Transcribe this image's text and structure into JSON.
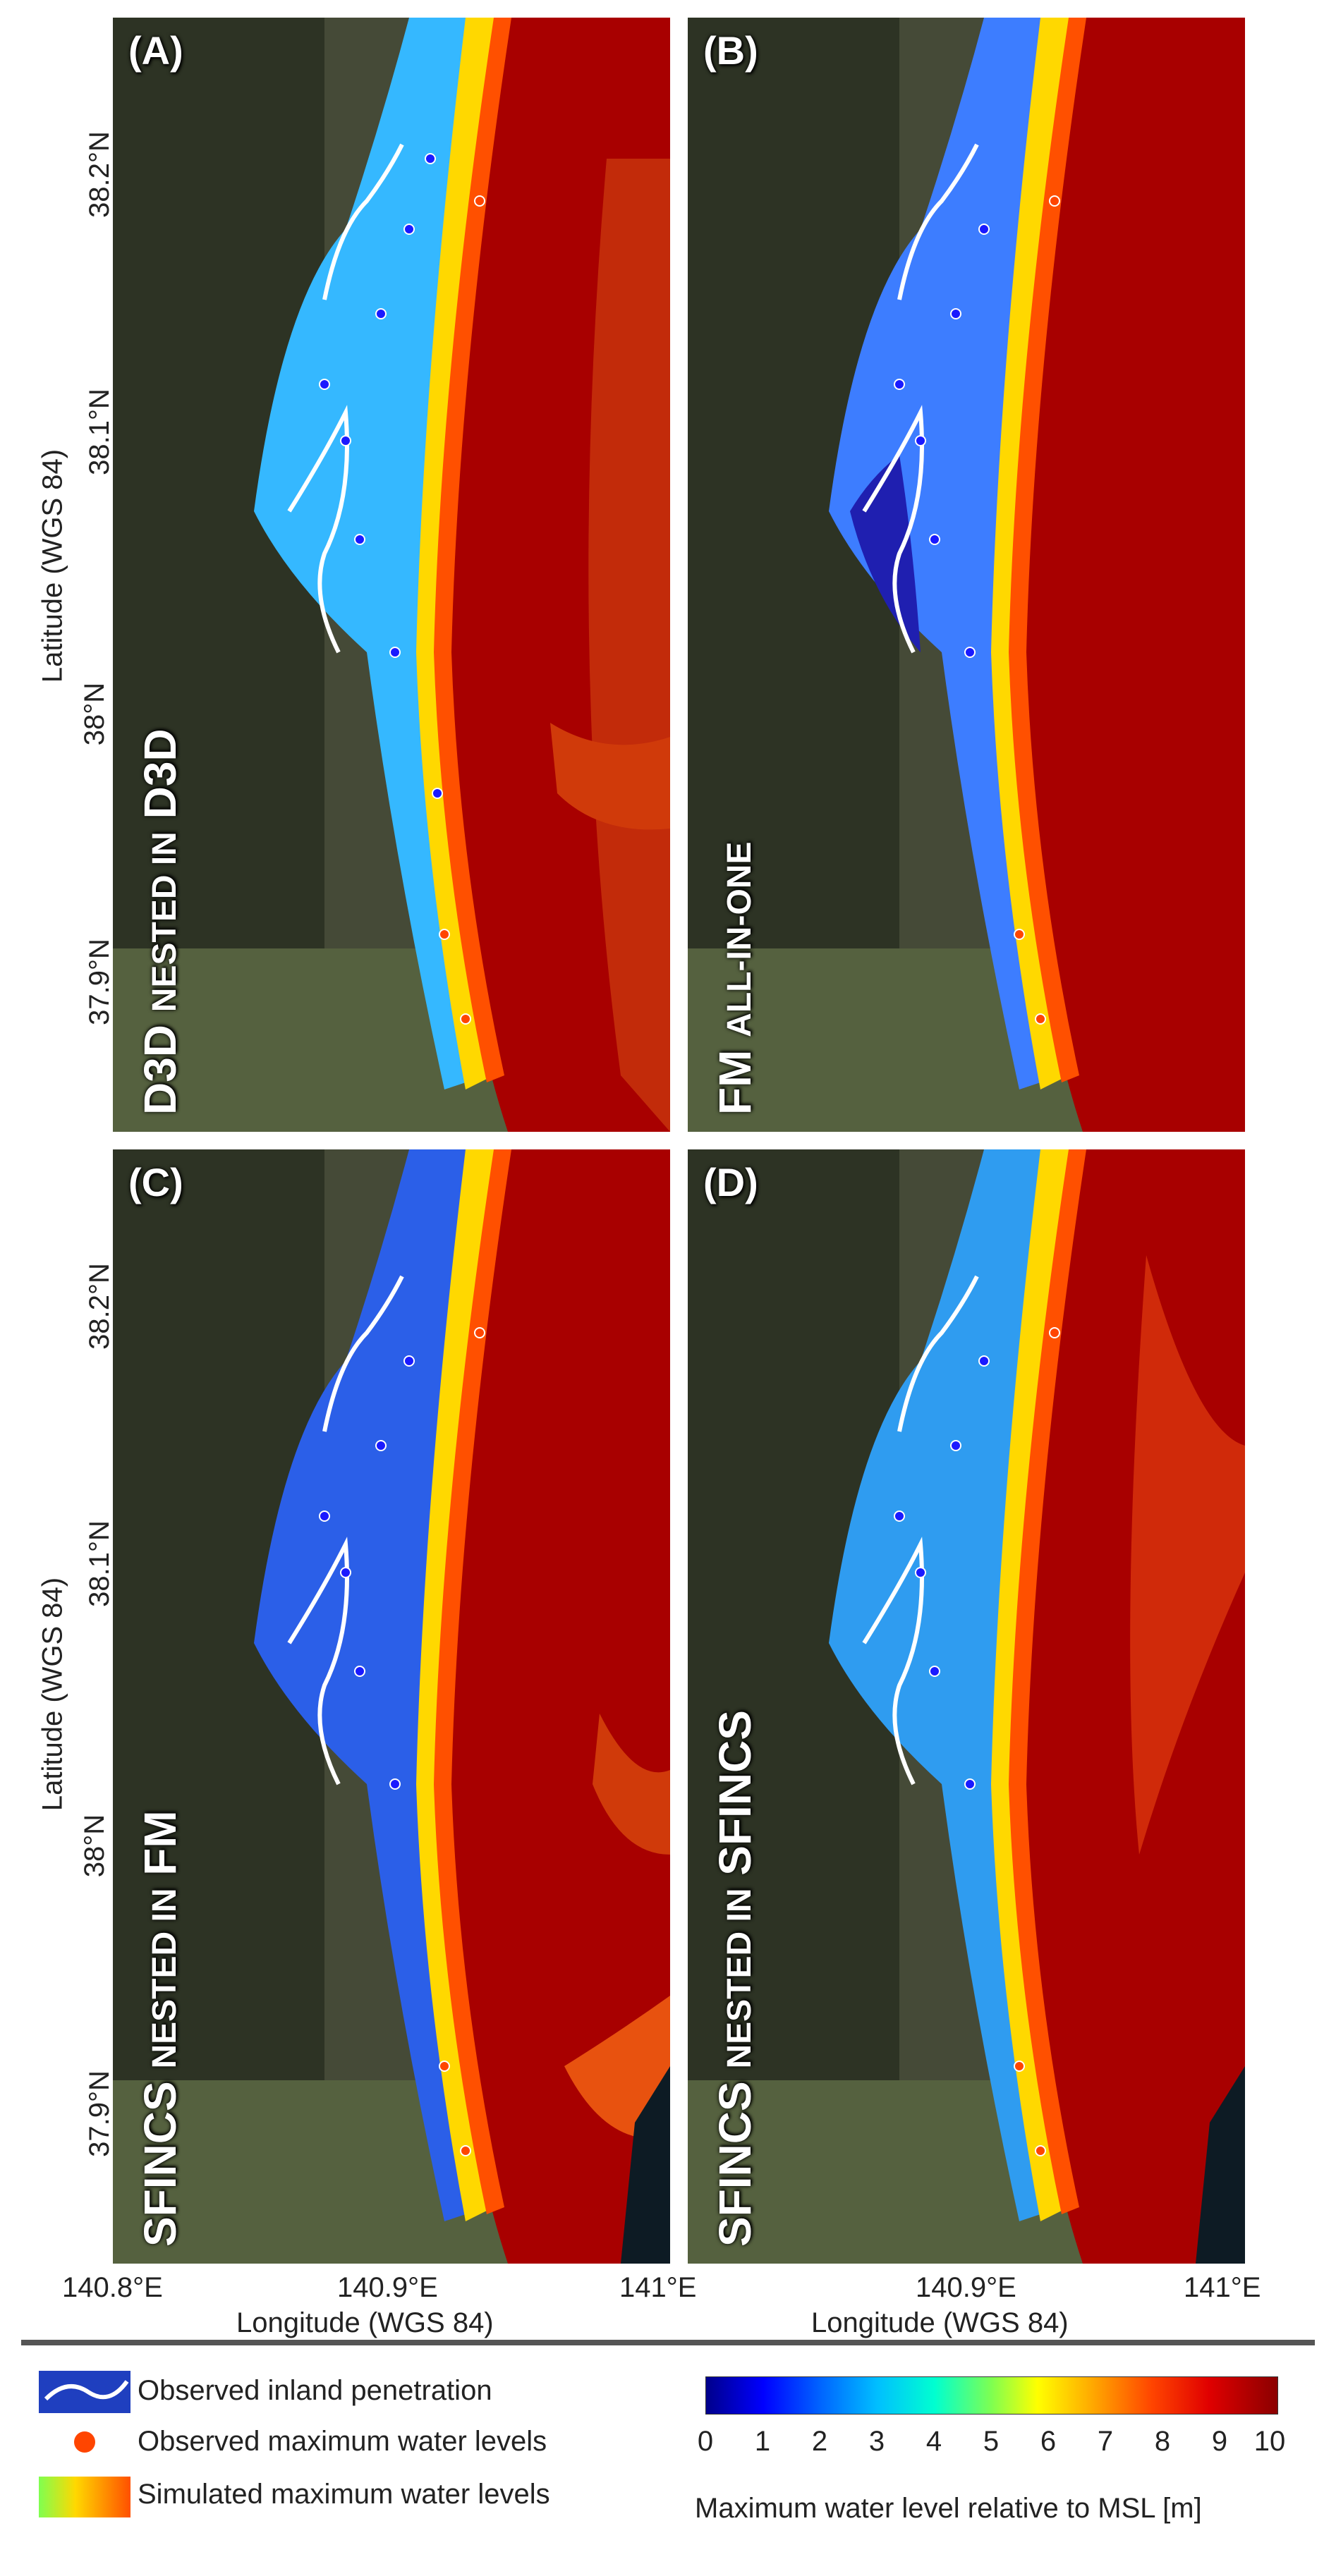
{
  "panels": [
    {
      "label": "(A)",
      "model_main": "D3D",
      "model_small": "NESTED IN",
      "model_end": "D3D"
    },
    {
      "label": "(B)",
      "model_main": "FM",
      "model_small": "ALL-IN-ONE",
      "model_end": ""
    },
    {
      "label": "(C)",
      "model_main": "SFINCS",
      "model_small": "NESTED IN",
      "model_end": "FM"
    },
    {
      "label": "(D)",
      "model_main": "SFINCS",
      "model_small": "NESTED IN",
      "model_end": "SFINCS"
    }
  ],
  "axes": {
    "y_title": "Latitude (WGS 84)",
    "x_title": "Longitude (WGS 84)",
    "y_ticks": [
      "38.2°N",
      "38.1°N",
      "38°N",
      "37.9°N"
    ],
    "x_ticks_left": [
      "140.8°E",
      "140.9°E",
      "141°E"
    ],
    "x_ticks_right": [
      "140.9°E",
      "141°E"
    ]
  },
  "legend": {
    "inland": "Observed inland penetration",
    "observed": "Observed maximum water levels",
    "simulated": "Simulated maximum water levels",
    "colorbar_title": "Maximum water level relative to MSL [m]",
    "colorbar_ticks": [
      "0",
      "1",
      "2",
      "3",
      "4",
      "5",
      "6",
      "7",
      "8",
      "9",
      "10"
    ]
  },
  "colors": {
    "sea": "#a80000",
    "land": "#3f4232",
    "inland_line": "#ffffff",
    "observed_dot": "#ff4500"
  }
}
